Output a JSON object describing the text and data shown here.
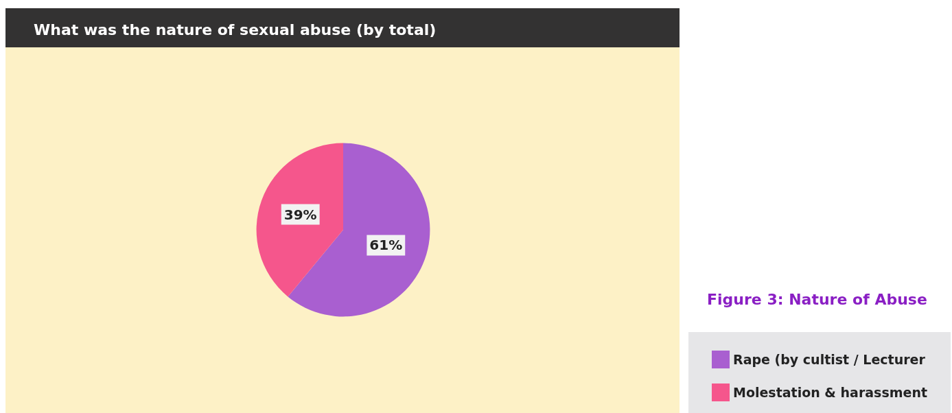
{
  "chart_data": {
    "type": "pie",
    "title": "What was the nature of sexual abuse (by total)",
    "categories": [
      "Rape (by cultist / Lecturer",
      "Molestation & harassment"
    ],
    "values": [
      61,
      39
    ],
    "colors": [
      "#a95fd0",
      "#f5568c"
    ],
    "value_labels": [
      "61%",
      "39%"
    ],
    "legend": "bottom right",
    "annotations": [
      "Figure 3: Nature of Abuse"
    ]
  }
}
